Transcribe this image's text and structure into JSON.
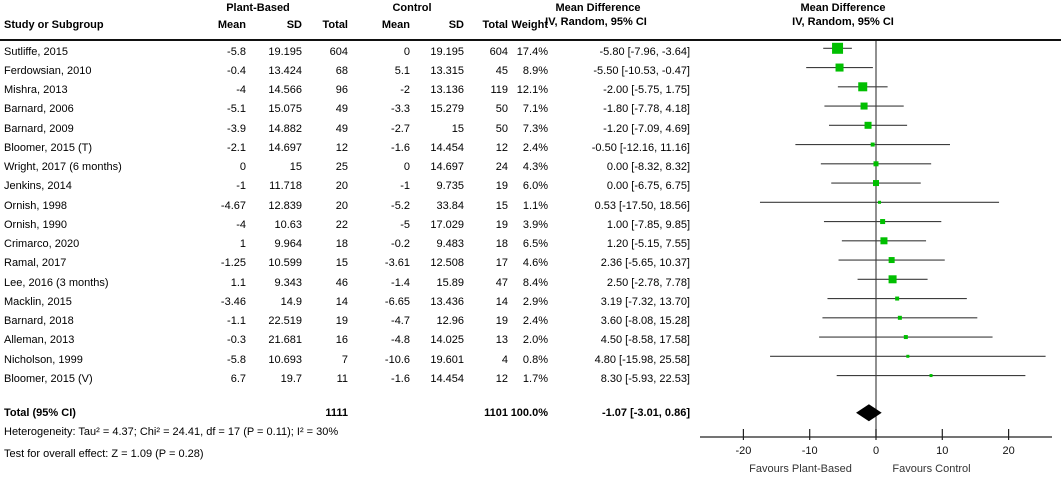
{
  "table": {
    "study_col_header": "Study or Subgroup",
    "group1_header": "Plant-Based",
    "group2_header": "Control",
    "subcols": {
      "mean": "Mean",
      "sd": "SD",
      "total": "Total",
      "weight": "Weight"
    },
    "md_header_line1": "Mean Difference",
    "md_header_line2": "IV, Random, 95% CI",
    "total_label": "Total (95% CI)",
    "total_pb_n": "1111",
    "total_c_n": "1101",
    "total_weight": "100.0%",
    "total_ci_text": "-1.07 [-3.01, 0.86]"
  },
  "plot": {
    "header_line1": "Mean Difference",
    "header_line2": "IV, Random, 95% CI",
    "favours_left": "Favours Plant-Based",
    "favours_right": "Favours Control"
  },
  "footnotes": {
    "heterogeneity": "Heterogeneity: Tau² = 4.37; Chi² = 24.41, df = 17 (P = 0.11); I² = 30%",
    "overall_effect": "Test for overall effect: Z = 1.09 (P = 0.28)"
  },
  "chart_data": {
    "type": "forest",
    "effect_measure": "Mean Difference, IV, Random, 95% CI",
    "x_axis": {
      "ticks": [
        -20,
        -10,
        0,
        10,
        20
      ],
      "range": [
        -26,
        26
      ],
      "label_left": "Favours Plant-Based",
      "label_right": "Favours Control"
    },
    "studies": [
      {
        "name": "Sutliffe, 2015",
        "pb_mean": "-5.8",
        "pb_sd": "19.195",
        "pb_n": "604",
        "c_mean": "0",
        "c_sd": "19.195",
        "c_n": "604",
        "weight": "17.4%",
        "ci_text": "-5.80 [-7.96, -3.64]",
        "md": -5.8,
        "lo": -7.96,
        "hi": -3.64,
        "w": 17.4
      },
      {
        "name": "Ferdowsian, 2010",
        "pb_mean": "-0.4",
        "pb_sd": "13.424",
        "pb_n": "68",
        "c_mean": "5.1",
        "c_sd": "13.315",
        "c_n": "45",
        "weight": "8.9%",
        "ci_text": "-5.50 [-10.53, -0.47]",
        "md": -5.5,
        "lo": -10.53,
        "hi": -0.47,
        "w": 8.9
      },
      {
        "name": "Mishra, 2013",
        "pb_mean": "-4",
        "pb_sd": "14.566",
        "pb_n": "96",
        "c_mean": "-2",
        "c_sd": "13.136",
        "c_n": "119",
        "weight": "12.1%",
        "ci_text": "-2.00 [-5.75, 1.75]",
        "md": -2.0,
        "lo": -5.75,
        "hi": 1.75,
        "w": 12.1
      },
      {
        "name": "Barnard, 2006",
        "pb_mean": "-5.1",
        "pb_sd": "15.075",
        "pb_n": "49",
        "c_mean": "-3.3",
        "c_sd": "15.279",
        "c_n": "50",
        "weight": "7.1%",
        "ci_text": "-1.80 [-7.78, 4.18]",
        "md": -1.8,
        "lo": -7.78,
        "hi": 4.18,
        "w": 7.1
      },
      {
        "name": "Barnard, 2009",
        "pb_mean": "-3.9",
        "pb_sd": "14.882",
        "pb_n": "49",
        "c_mean": "-2.7",
        "c_sd": "15",
        "c_n": "50",
        "weight": "7.3%",
        "ci_text": "-1.20 [-7.09, 4.69]",
        "md": -1.2,
        "lo": -7.09,
        "hi": 4.69,
        "w": 7.3
      },
      {
        "name": "Bloomer, 2015 (T)",
        "pb_mean": "-2.1",
        "pb_sd": "14.697",
        "pb_n": "12",
        "c_mean": "-1.6",
        "c_sd": "14.454",
        "c_n": "12",
        "weight": "2.4%",
        "ci_text": "-0.50 [-12.16, 11.16]",
        "md": -0.5,
        "lo": -12.16,
        "hi": 11.16,
        "w": 2.4
      },
      {
        "name": "Wright, 2017 (6 months)",
        "pb_mean": "0",
        "pb_sd": "15",
        "pb_n": "25",
        "c_mean": "0",
        "c_sd": "14.697",
        "c_n": "24",
        "weight": "4.3%",
        "ci_text": "0.00 [-8.32, 8.32]",
        "md": 0.0,
        "lo": -8.32,
        "hi": 8.32,
        "w": 4.3
      },
      {
        "name": "Jenkins, 2014",
        "pb_mean": "-1",
        "pb_sd": "11.718",
        "pb_n": "20",
        "c_mean": "-1",
        "c_sd": "9.735",
        "c_n": "19",
        "weight": "6.0%",
        "ci_text": "0.00 [-6.75, 6.75]",
        "md": 0.0,
        "lo": -6.75,
        "hi": 6.75,
        "w": 6.0
      },
      {
        "name": "Ornish, 1998",
        "pb_mean": "-4.67",
        "pb_sd": "12.839",
        "pb_n": "20",
        "c_mean": "-5.2",
        "c_sd": "33.84",
        "c_n": "15",
        "weight": "1.1%",
        "ci_text": "0.53 [-17.50, 18.56]",
        "md": 0.53,
        "lo": -17.5,
        "hi": 18.56,
        "w": 1.1
      },
      {
        "name": "Ornish, 1990",
        "pb_mean": "-4",
        "pb_sd": "10.63",
        "pb_n": "22",
        "c_mean": "-5",
        "c_sd": "17.029",
        "c_n": "19",
        "weight": "3.9%",
        "ci_text": "1.00 [-7.85, 9.85]",
        "md": 1.0,
        "lo": -7.85,
        "hi": 9.85,
        "w": 3.9
      },
      {
        "name": "Crimarco, 2020",
        "pb_mean": "1",
        "pb_sd": "9.964",
        "pb_n": "18",
        "c_mean": "-0.2",
        "c_sd": "9.483",
        "c_n": "18",
        "weight": "6.5%",
        "ci_text": "1.20 [-5.15, 7.55]",
        "md": 1.2,
        "lo": -5.15,
        "hi": 7.55,
        "w": 6.5
      },
      {
        "name": "Ramal, 2017",
        "pb_mean": "-1.25",
        "pb_sd": "10.599",
        "pb_n": "15",
        "c_mean": "-3.61",
        "c_sd": "12.508",
        "c_n": "17",
        "weight": "4.6%",
        "ci_text": "2.36 [-5.65, 10.37]",
        "md": 2.36,
        "lo": -5.65,
        "hi": 10.37,
        "w": 4.6
      },
      {
        "name": "Lee, 2016 (3 months)",
        "pb_mean": "1.1",
        "pb_sd": "9.343",
        "pb_n": "46",
        "c_mean": "-1.4",
        "c_sd": "15.89",
        "c_n": "47",
        "weight": "8.4%",
        "ci_text": "2.50 [-2.78, 7.78]",
        "md": 2.5,
        "lo": -2.78,
        "hi": 7.78,
        "w": 8.4
      },
      {
        "name": "Macklin, 2015",
        "pb_mean": "-3.46",
        "pb_sd": "14.9",
        "pb_n": "14",
        "c_mean": "-6.65",
        "c_sd": "13.436",
        "c_n": "14",
        "weight": "2.9%",
        "ci_text": "3.19 [-7.32, 13.70]",
        "md": 3.19,
        "lo": -7.32,
        "hi": 13.7,
        "w": 2.9
      },
      {
        "name": "Barnard, 2018",
        "pb_mean": "-1.1",
        "pb_sd": "22.519",
        "pb_n": "19",
        "c_mean": "-4.7",
        "c_sd": "12.96",
        "c_n": "19",
        "weight": "2.4%",
        "ci_text": "3.60 [-8.08, 15.28]",
        "md": 3.6,
        "lo": -8.08,
        "hi": 15.28,
        "w": 2.4
      },
      {
        "name": "Alleman, 2013",
        "pb_mean": "-0.3",
        "pb_sd": "21.681",
        "pb_n": "16",
        "c_mean": "-4.8",
        "c_sd": "14.025",
        "c_n": "13",
        "weight": "2.0%",
        "ci_text": "4.50 [-8.58, 17.58]",
        "md": 4.5,
        "lo": -8.58,
        "hi": 17.58,
        "w": 2.0
      },
      {
        "name": "Nicholson, 1999",
        "pb_mean": "-5.8",
        "pb_sd": "10.693",
        "pb_n": "7",
        "c_mean": "-10.6",
        "c_sd": "19.601",
        "c_n": "4",
        "weight": "0.8%",
        "ci_text": "4.80 [-15.98, 25.58]",
        "md": 4.8,
        "lo": -15.98,
        "hi": 25.58,
        "w": 0.8
      },
      {
        "name": "Bloomer, 2015 (V)",
        "pb_mean": "6.7",
        "pb_sd": "19.7",
        "pb_n": "11",
        "c_mean": "-1.6",
        "c_sd": "14.454",
        "c_n": "12",
        "weight": "1.7%",
        "ci_text": "8.30 [-5.93, 22.53]",
        "md": 8.3,
        "lo": -5.93,
        "hi": 22.53,
        "w": 1.7
      }
    ],
    "total": {
      "label": "Total (95% CI)",
      "pb_n": 1111,
      "c_n": 1101,
      "weight": "100.0%",
      "md": -1.07,
      "lo": -3.01,
      "hi": 0.86,
      "ci_text": "-1.07 [-3.01, 0.86]"
    }
  },
  "colors": {
    "marker_green": "#00bf00",
    "ci_line": "#3d3d3d",
    "zero_line": "#555555",
    "axis": "#222222",
    "diamond": "#000000",
    "favours_text": "#333333"
  }
}
